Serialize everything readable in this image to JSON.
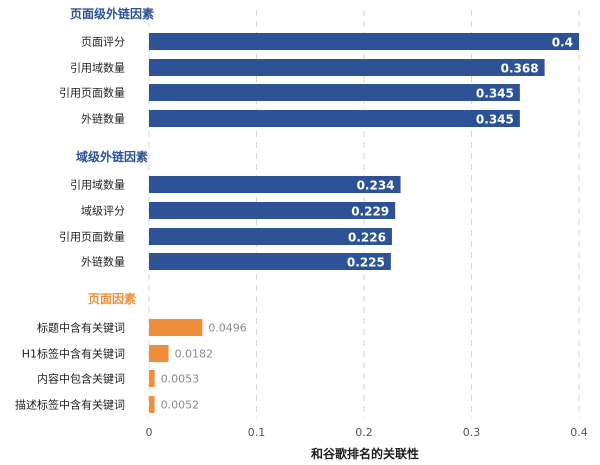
{
  "chart_data": {
    "type": "bar",
    "orientation": "horizontal",
    "xlabel": "和谷歌排名的关联性",
    "xlim": [
      0,
      0.4
    ],
    "xticks": [
      "0",
      "0.1",
      "0.2",
      "0.3",
      "0.4"
    ],
    "grid": true,
    "groups": [
      {
        "name": "页面级外链因素",
        "color": "#2d5396",
        "label_inside": true,
        "categories": [
          "页面评分",
          "引用域数量",
          "引用页面数量",
          "外链数量"
        ],
        "values": [
          0.4,
          0.368,
          0.345,
          0.345
        ],
        "labels": [
          "0.4",
          "0.368",
          "0.345",
          "0.345"
        ]
      },
      {
        "name": "域级外链因素",
        "color": "#2d5396",
        "label_inside": true,
        "categories": [
          "引用域数量",
          "域级评分",
          "引用页面数量",
          "外链数量"
        ],
        "values": [
          0.234,
          0.229,
          0.226,
          0.225
        ],
        "labels": [
          "0.234",
          "0.229",
          "0.226",
          "0.225"
        ]
      },
      {
        "name": "页面因素",
        "color": "#ef8f3c",
        "label_inside": false,
        "categories": [
          "标题中含有关键词",
          "H1标签中含有关键词",
          "内容中包含关键词",
          "描述标签中含有关键词"
        ],
        "values": [
          0.0496,
          0.0182,
          0.0053,
          0.0052
        ],
        "labels": [
          "0.0496",
          "0.0182",
          "0.0053",
          "0.0052"
        ]
      }
    ]
  }
}
